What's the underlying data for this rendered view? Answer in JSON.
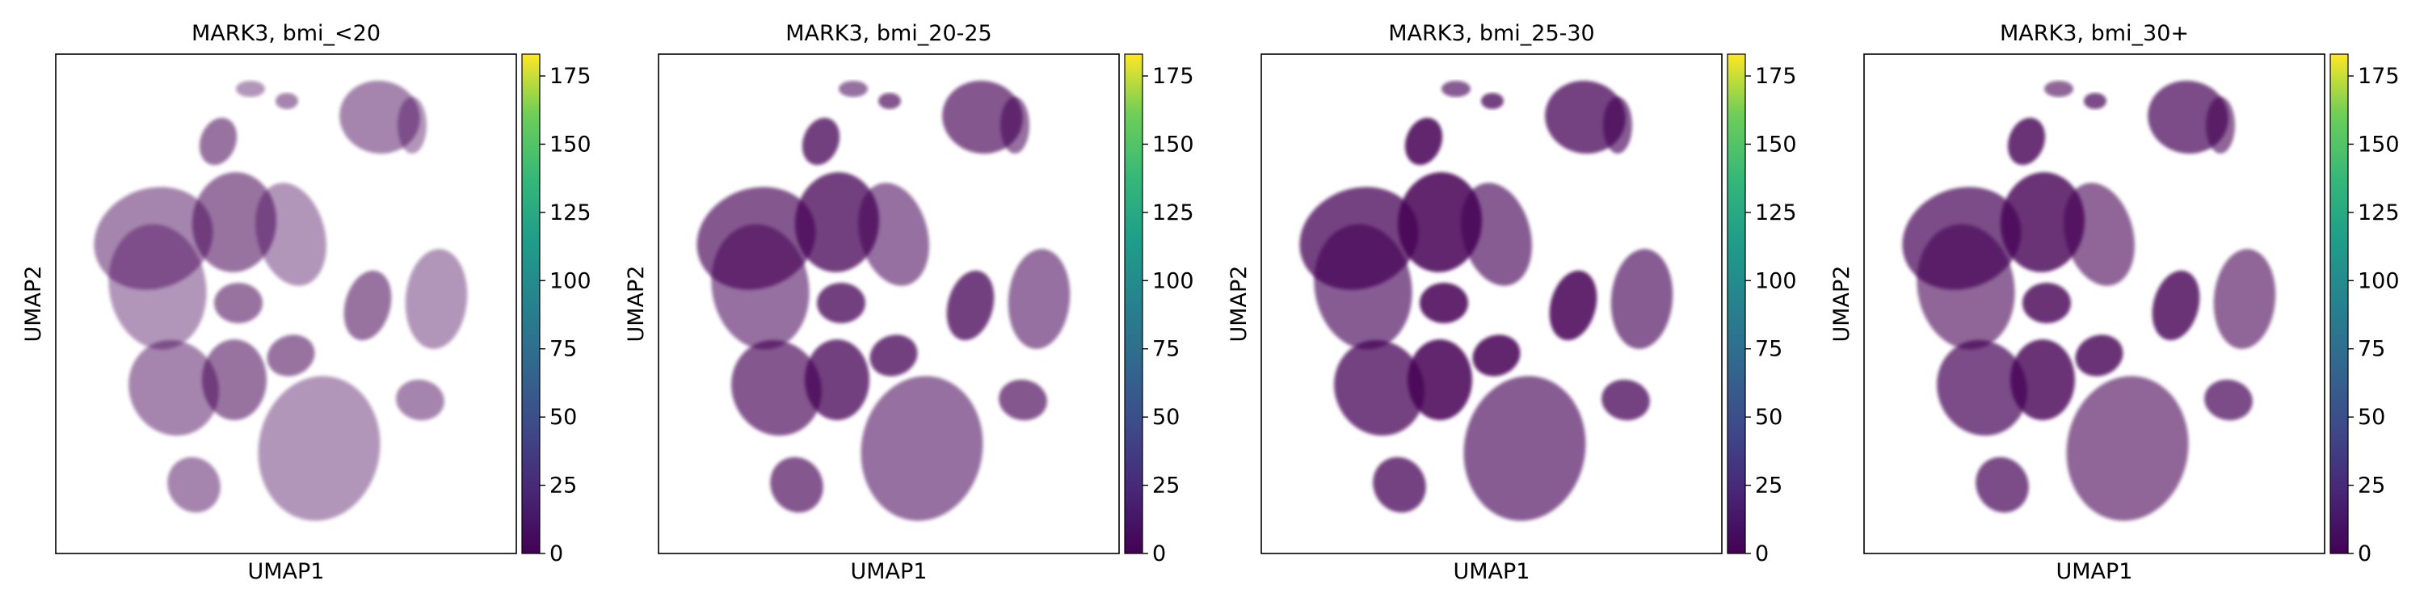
{
  "chart_data": [
    {
      "type": "scatter",
      "title": "MARK3, bmi_<20",
      "xlabel": "UMAP1",
      "ylabel": "UMAP2",
      "colorbar": {
        "ticks": [
          0,
          25,
          50,
          75,
          100,
          125,
          150,
          175
        ],
        "range": [
          0,
          183
        ],
        "colormap": "viridis"
      },
      "point_color": "#440154",
      "density": 0.55
    },
    {
      "type": "scatter",
      "title": "MARK3, bmi_20-25",
      "xlabel": "UMAP1",
      "ylabel": "UMAP2",
      "colorbar": {
        "ticks": [
          0,
          25,
          50,
          75,
          100,
          125,
          150,
          175
        ],
        "range": [
          0,
          183
        ],
        "colormap": "viridis"
      },
      "point_color": "#440154",
      "density": 0.75
    },
    {
      "type": "scatter",
      "title": "MARK3, bmi_25-30",
      "xlabel": "UMAP1",
      "ylabel": "UMAP2",
      "colorbar": {
        "ticks": [
          0,
          25,
          50,
          75,
          100,
          125,
          150,
          175
        ],
        "range": [
          0,
          183
        ],
        "colormap": "viridis"
      },
      "point_color": "#440154",
      "density": 0.85
    },
    {
      "type": "scatter",
      "title": "MARK3, bmi_30+",
      "xlabel": "UMAP1",
      "ylabel": "UMAP2",
      "colorbar": {
        "ticks": [
          0,
          25,
          50,
          75,
          100,
          125,
          150,
          175
        ],
        "range": [
          0,
          183
        ],
        "colormap": "viridis"
      },
      "point_color": "#440154",
      "density": 0.8
    }
  ]
}
